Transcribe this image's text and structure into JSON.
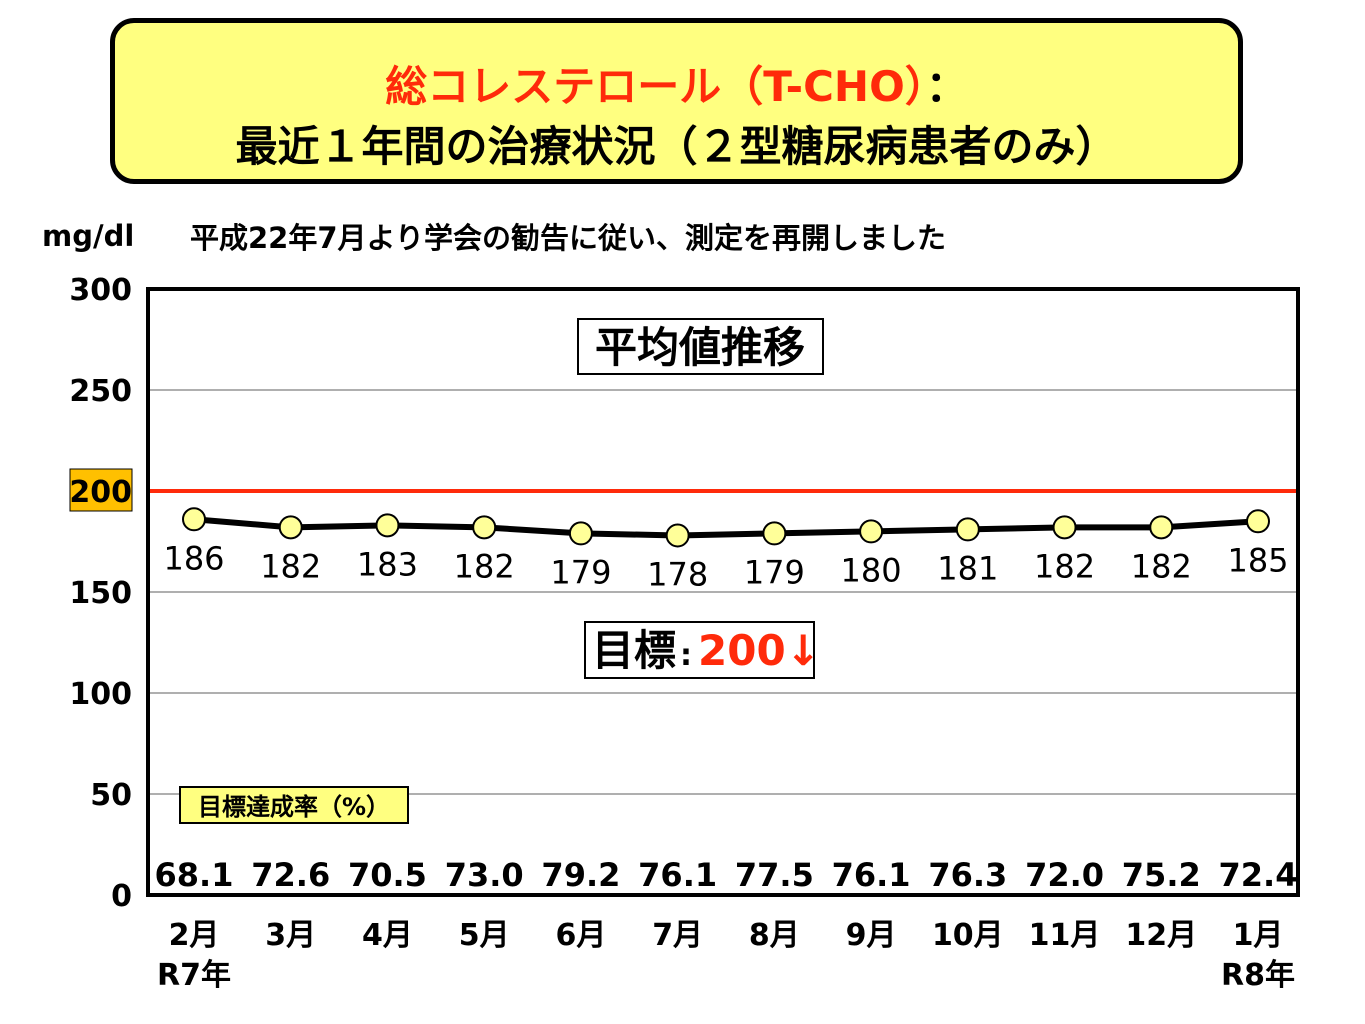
{
  "title": {
    "red_part": "総コレステロール（T-CHO）",
    "black_part": "：",
    "line2": "最近１年間の治療状況（２型糖尿病患者のみ）"
  },
  "unit_label": "mg/dl",
  "note": "平成22年7月より学会の勧告に従い、測定を再開しました",
  "chart_title": "平均値推移",
  "target_box": {
    "label": "目標",
    "colon": ":",
    "value": "200↓"
  },
  "rate_box_label": "目標達成率（%）",
  "colors": {
    "target_line": "#ff2a0a",
    "target_text": "#ff2a0a",
    "marker_fill": "#ffff99",
    "series_line": "#000000",
    "rate_box_bg": "#ffff80",
    "highlight_tick_bg": "#ffc000"
  },
  "chart_data": {
    "type": "line",
    "title": "平均値推移",
    "ylabel": "mg/dl",
    "ylim": [
      0,
      300
    ],
    "yticks": [
      "0",
      "50",
      "100",
      "150",
      "200",
      "250",
      "300"
    ],
    "highlight_tick": "200",
    "grid": true,
    "categories": [
      "2月",
      "3月",
      "4月",
      "5月",
      "6月",
      "7月",
      "8月",
      "9月",
      "10月",
      "11月",
      "12月",
      "1月"
    ],
    "year_labels": {
      "first": "R7年",
      "last": "R8年"
    },
    "values": [
      186,
      182,
      183,
      182,
      179,
      178,
      179,
      180,
      181,
      182,
      182,
      185
    ],
    "rates": [
      "68.1",
      "72.6",
      "70.5",
      "73.0",
      "79.2",
      "76.1",
      "77.5",
      "76.1",
      "76.3",
      "72.0",
      "75.2",
      "72.4"
    ],
    "target": 200
  }
}
